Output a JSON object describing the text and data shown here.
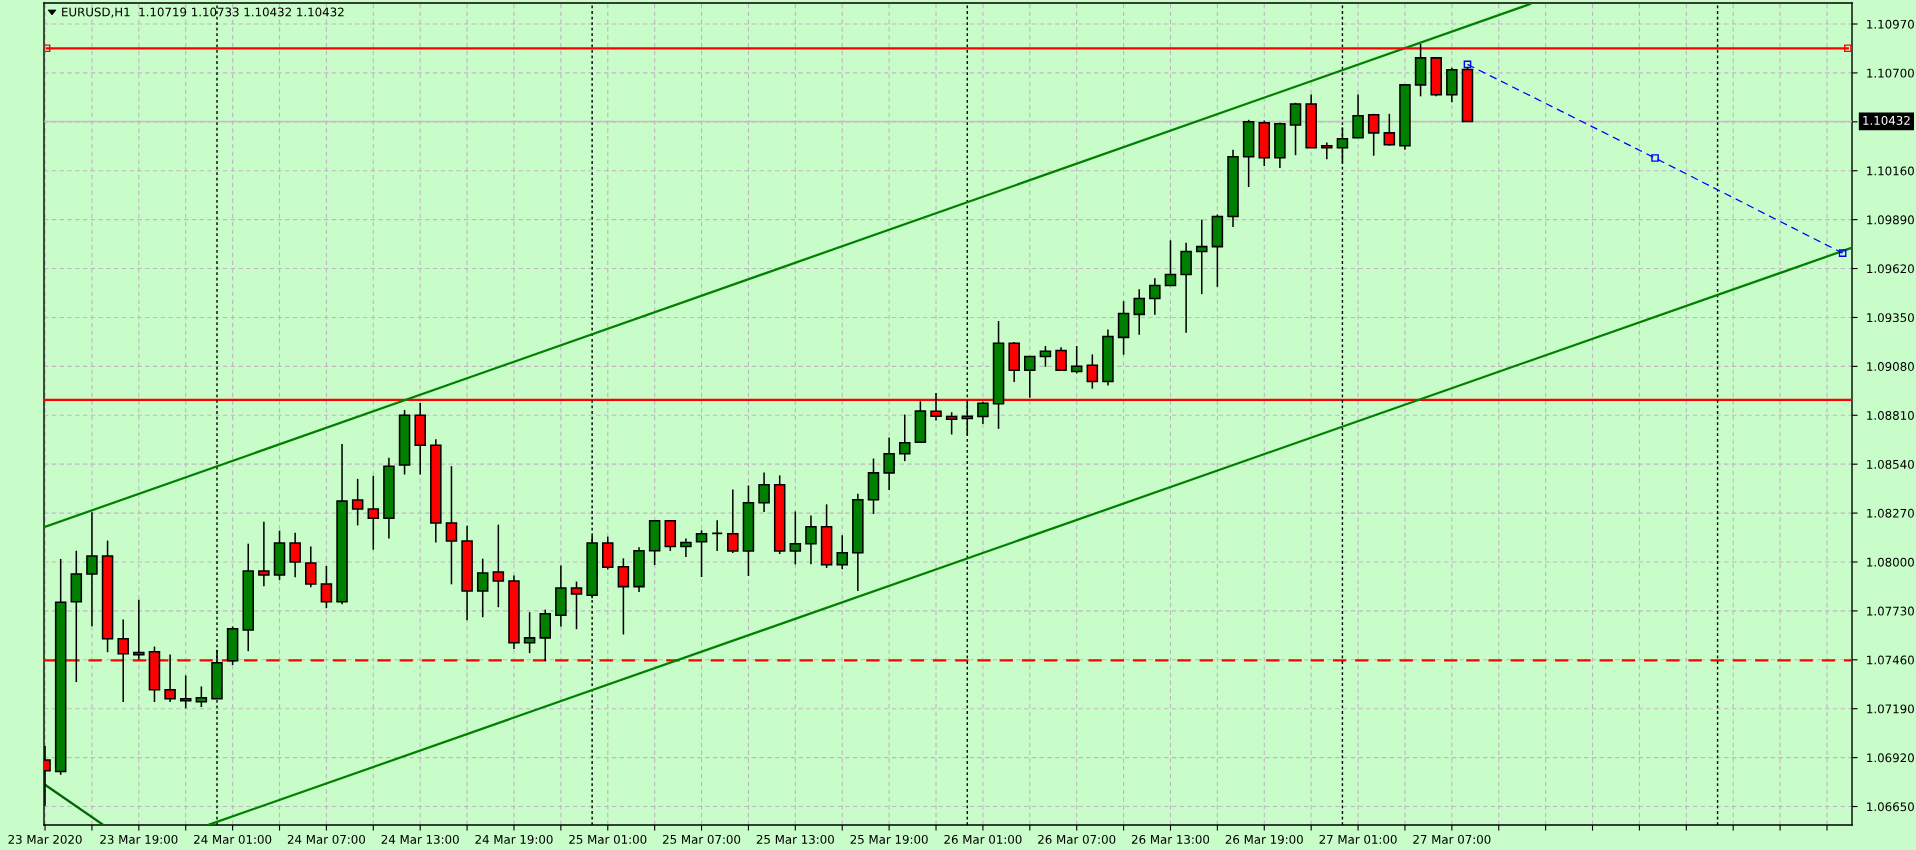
{
  "chart_data": {
    "type": "candlestick",
    "title": "EURUSD,H1  1.10719 1.10733 1.10432 1.10432",
    "x": [
      "2020-03-23T13:00",
      "2020-03-23T14:00",
      "2020-03-23T15:00",
      "2020-03-23T16:00",
      "2020-03-23T17:00",
      "2020-03-23T18:00",
      "2020-03-23T19:00",
      "2020-03-23T20:00",
      "2020-03-23T21:00",
      "2020-03-23T22:00",
      "2020-03-23T23:00",
      "2020-03-24T00:00",
      "2020-03-24T01:00",
      "2020-03-24T02:00",
      "2020-03-24T03:00",
      "2020-03-24T04:00",
      "2020-03-24T05:00",
      "2020-03-24T06:00",
      "2020-03-24T07:00",
      "2020-03-24T08:00",
      "2020-03-24T09:00",
      "2020-03-24T10:00",
      "2020-03-24T11:00",
      "2020-03-24T12:00",
      "2020-03-24T13:00",
      "2020-03-24T14:00",
      "2020-03-24T15:00",
      "2020-03-24T16:00",
      "2020-03-24T17:00",
      "2020-03-24T18:00",
      "2020-03-24T19:00",
      "2020-03-24T20:00",
      "2020-03-24T21:00",
      "2020-03-24T22:00",
      "2020-03-24T23:00",
      "2020-03-25T00:00",
      "2020-03-25T01:00",
      "2020-03-25T02:00",
      "2020-03-25T03:00",
      "2020-03-25T04:00",
      "2020-03-25T05:00",
      "2020-03-25T06:00",
      "2020-03-25T07:00",
      "2020-03-25T08:00",
      "2020-03-25T09:00",
      "2020-03-25T10:00",
      "2020-03-25T11:00",
      "2020-03-25T12:00",
      "2020-03-25T13:00",
      "2020-03-25T14:00",
      "2020-03-25T15:00",
      "2020-03-25T16:00",
      "2020-03-25T17:00",
      "2020-03-25T18:00",
      "2020-03-25T19:00",
      "2020-03-25T20:00",
      "2020-03-25T21:00",
      "2020-03-25T22:00",
      "2020-03-25T23:00",
      "2020-03-26T00:00",
      "2020-03-26T01:00",
      "2020-03-26T02:00",
      "2020-03-26T03:00",
      "2020-03-26T04:00",
      "2020-03-26T05:00",
      "2020-03-26T06:00",
      "2020-03-26T07:00",
      "2020-03-26T08:00",
      "2020-03-26T09:00",
      "2020-03-26T10:00",
      "2020-03-26T11:00",
      "2020-03-26T12:00",
      "2020-03-26T13:00",
      "2020-03-26T14:00",
      "2020-03-26T15:00",
      "2020-03-26T16:00",
      "2020-03-26T17:00",
      "2020-03-26T18:00",
      "2020-03-26T19:00",
      "2020-03-26T20:00",
      "2020-03-26T21:00",
      "2020-03-26T22:00",
      "2020-03-26T23:00",
      "2020-03-27T00:00",
      "2020-03-27T01:00",
      "2020-03-27T02:00",
      "2020-03-27T03:00",
      "2020-03-27T04:00",
      "2020-03-27T05:00",
      "2020-03-27T06:00",
      "2020-03-27T07:00",
      "2020-03-27T08:00"
    ],
    "ohlc": [
      [
        1.06907,
        1.06984,
        1.06654,
        1.06847
      ],
      [
        1.06843,
        1.08017,
        1.06825,
        1.07778
      ],
      [
        1.0778,
        1.08062,
        1.07337,
        1.07934
      ],
      [
        1.07934,
        1.08274,
        1.07645,
        1.08033
      ],
      [
        1.08033,
        1.08118,
        1.07502,
        1.07576
      ],
      [
        1.07576,
        1.07682,
        1.07227,
        1.07493
      ],
      [
        1.07488,
        1.07792,
        1.07462,
        1.075
      ],
      [
        1.07504,
        1.07533,
        1.07227,
        1.07295
      ],
      [
        1.07295,
        1.07489,
        1.07227,
        1.07245
      ],
      [
        1.07245,
        1.07374,
        1.07192,
        1.07234
      ],
      [
        1.07229,
        1.07313,
        1.07199,
        1.07251
      ],
      [
        1.07245,
        1.07515,
        1.07243,
        1.07444
      ],
      [
        1.07455,
        1.07644,
        1.07431,
        1.07631
      ],
      [
        1.07625,
        1.08101,
        1.07508,
        1.0795
      ],
      [
        1.0795,
        1.08222,
        1.07866,
        1.07928
      ],
      [
        1.07928,
        1.08173,
        1.07901,
        1.08105
      ],
      [
        1.08105,
        1.08162,
        1.07916,
        1.08
      ],
      [
        1.07995,
        1.08085,
        1.0786,
        1.07879
      ],
      [
        1.07879,
        1.07978,
        1.07745,
        1.0778
      ],
      [
        1.0778,
        1.08652,
        1.07767,
        1.08336
      ],
      [
        1.08342,
        1.08459,
        1.08202,
        1.08292
      ],
      [
        1.08292,
        1.08476,
        1.08068,
        1.08242
      ],
      [
        1.08242,
        1.08575,
        1.0813,
        1.08529
      ],
      [
        1.08535,
        1.08839,
        1.08483,
        1.0881
      ],
      [
        1.0881,
        1.08878,
        1.08483,
        1.08645
      ],
      [
        1.08645,
        1.08678,
        1.08108,
        1.08215
      ],
      [
        1.08215,
        1.08529,
        1.07877,
        1.08116
      ],
      [
        1.08116,
        1.082,
        1.07679,
        1.0784
      ],
      [
        1.0784,
        1.08018,
        1.07695,
        1.07939
      ],
      [
        1.07945,
        1.08206,
        1.0775,
        1.07895
      ],
      [
        1.07895,
        1.07925,
        1.07519,
        1.07554
      ],
      [
        1.07554,
        1.07723,
        1.07497,
        1.07581
      ],
      [
        1.07581,
        1.07737,
        1.07453,
        1.07714
      ],
      [
        1.07706,
        1.0798,
        1.07644,
        1.07857
      ],
      [
        1.07857,
        1.07892,
        1.07629,
        1.07824
      ],
      [
        1.07816,
        1.08145,
        1.078,
        1.08105
      ],
      [
        1.08105,
        1.0814,
        1.07958,
        1.07971
      ],
      [
        1.07974,
        1.0802,
        1.076,
        1.07864
      ],
      [
        1.07864,
        1.08081,
        1.07835,
        1.08062
      ],
      [
        1.08062,
        1.0823,
        1.07983,
        1.08228
      ],
      [
        1.08228,
        1.0823,
        1.08061,
        1.08085
      ],
      [
        1.08085,
        1.0813,
        1.08028,
        1.08107
      ],
      [
        1.08112,
        1.08175,
        1.07917,
        1.08156
      ],
      [
        1.08158,
        1.0823,
        1.08061,
        1.08158
      ],
      [
        1.08156,
        1.084,
        1.0805,
        1.08061
      ],
      [
        1.08061,
        1.08422,
        1.07923,
        1.08327
      ],
      [
        1.08327,
        1.08494,
        1.08276,
        1.08426
      ],
      [
        1.08426,
        1.08478,
        1.08044,
        1.08061
      ],
      [
        1.08061,
        1.08279,
        1.07987,
        1.08101
      ],
      [
        1.08101,
        1.08257,
        1.07987,
        1.08195
      ],
      [
        1.08195,
        1.08318,
        1.07967,
        1.07985
      ],
      [
        1.07985,
        1.08147,
        1.0796,
        1.08051
      ],
      [
        1.08051,
        1.08377,
        1.0784,
        1.08343
      ],
      [
        1.08343,
        1.08571,
        1.08265,
        1.08492
      ],
      [
        1.08492,
        1.08687,
        1.08397,
        1.08597
      ],
      [
        1.08597,
        1.08814,
        1.08557,
        1.08658
      ],
      [
        1.08661,
        1.08887,
        1.08658,
        1.08834
      ],
      [
        1.08832,
        1.08933,
        1.08781,
        1.08805
      ],
      [
        1.08803,
        1.08827,
        1.08704,
        1.08788
      ],
      [
        1.08792,
        1.08885,
        1.087,
        1.08805
      ],
      [
        1.08803,
        1.08884,
        1.08762,
        1.08876
      ],
      [
        1.08874,
        1.0933,
        1.08735,
        1.09207
      ],
      [
        1.09207,
        1.09214,
        1.08994,
        1.09058
      ],
      [
        1.09058,
        1.09135,
        1.08907,
        1.09135
      ],
      [
        1.09135,
        1.09192,
        1.09078,
        1.09163
      ],
      [
        1.09168,
        1.09185,
        1.09058,
        1.09058
      ],
      [
        1.09052,
        1.09192,
        1.09041,
        1.0908
      ],
      [
        1.09086,
        1.09146,
        1.08957,
        1.08997
      ],
      [
        1.08997,
        1.09284,
        1.08974,
        1.09245
      ],
      [
        1.0924,
        1.0944,
        1.09144,
        1.09372
      ],
      [
        1.09367,
        1.09506,
        1.09255,
        1.09455
      ],
      [
        1.09455,
        1.09567,
        1.09365,
        1.09526
      ],
      [
        1.09526,
        1.09776,
        1.09526,
        1.09587
      ],
      [
        1.09587,
        1.09763,
        1.09266,
        1.09714
      ],
      [
        1.09714,
        1.0989,
        1.09479,
        1.09741
      ],
      [
        1.09741,
        1.09918,
        1.09519,
        1.09907
      ],
      [
        1.09907,
        1.10276,
        1.0985,
        1.10237
      ],
      [
        1.10237,
        1.10441,
        1.1007,
        1.1043
      ],
      [
        1.10425,
        1.10437,
        1.10186,
        1.10232
      ],
      [
        1.10232,
        1.10426,
        1.10175,
        1.10419
      ],
      [
        1.10413,
        1.10535,
        1.10246,
        1.10529
      ],
      [
        1.10529,
        1.10581,
        1.10287,
        1.10287
      ],
      [
        1.10298,
        1.10316,
        1.10224,
        1.10287
      ],
      [
        1.10287,
        1.10399,
        1.10202,
        1.10336
      ],
      [
        1.10342,
        1.10581,
        1.10342,
        1.10463
      ],
      [
        1.10469,
        1.10474,
        1.10243,
        1.10369
      ],
      [
        1.10369,
        1.10474,
        1.10298,
        1.10303
      ],
      [
        1.10298,
        1.10639,
        1.10276,
        1.10634
      ],
      [
        1.10634,
        1.1086,
        1.10571,
        1.10783
      ],
      [
        1.10783,
        1.10783,
        1.10571,
        1.10579
      ],
      [
        1.10579,
        1.10728,
        1.10538,
        1.10717
      ],
      [
        1.10719,
        1.10733,
        1.10432,
        1.10432
      ]
    ],
    "series": [
      {
        "type": "line",
        "x": [
          "2020-03-23T13:00",
          "2020-03-27T12:00"
        ],
        "values": [
          1.08194,
          1.1108
        ],
        "color": "#008000",
        "line_style": "solid"
      },
      {
        "type": "line",
        "x": [
          "2020-03-23T23:30",
          "2020-03-28T08:30"
        ],
        "values": [
          1.0655,
          1.09732
        ],
        "color": "#008000",
        "line_style": "solid"
      },
      {
        "type": "line",
        "x": [
          "2020-03-23T13:00",
          "2020-03-23T16:40"
        ],
        "values": [
          1.0677,
          1.06552
        ],
        "color": "#006400",
        "line_style": "solid"
      },
      {
        "type": "line",
        "x": [
          "2020-03-27T08:00",
          "2020-03-27T20:00",
          "2020-03-28T08:00"
        ],
        "values": [
          1.10747,
          1.1023,
          1.09705
        ],
        "color": "#0000ff",
        "line_style": "dashed",
        "marker": "square"
      },
      {
        "type": "line",
        "x": [
          "2020-03-23T13:06",
          "2020-03-28T08:20"
        ],
        "values": [
          1.10836,
          1.10836
        ],
        "color": "#ff0000",
        "line_style": "solid",
        "marker": "square"
      }
    ],
    "ref_lines": [
      {
        "axis": "y",
        "value": 1.08895,
        "color": "#ff0000",
        "line_style": "solid"
      },
      {
        "axis": "y",
        "value": 1.07457,
        "color": "#ff0000",
        "line_style": "dashed"
      },
      {
        "axis": "y",
        "value": 1.10432,
        "label": "1.10432",
        "color": "#c0c0c0",
        "line_style": "solid"
      },
      {
        "axis": "x",
        "value": "2020-03-24T00:00",
        "color": "#000000",
        "line_style": "dotted"
      },
      {
        "axis": "x",
        "value": "2020-03-25T00:00",
        "color": "#000000",
        "line_style": "dotted"
      },
      {
        "axis": "x",
        "value": "2020-03-26T00:00",
        "color": "#000000",
        "line_style": "dotted"
      },
      {
        "axis": "x",
        "value": "2020-03-27T00:00",
        "color": "#000000",
        "line_style": "dotted"
      },
      {
        "axis": "x",
        "value": "2020-03-28T00:00",
        "color": "#000000",
        "line_style": "dotted"
      }
    ],
    "xlim": [
      "2020-03-23T12:56",
      "2020-03-28T08:36"
    ],
    "xticks": [
      {
        "value": "2020-03-23T13:00",
        "label": "23 Mar 2020"
      },
      {
        "value": "2020-03-23T16:00",
        "label": null
      },
      {
        "value": "2020-03-23T19:00",
        "label": "23 Mar 19:00"
      },
      {
        "value": "2020-03-23T22:00",
        "label": null
      },
      {
        "value": "2020-03-24T01:00",
        "label": "24 Mar 01:00"
      },
      {
        "value": "2020-03-24T04:00",
        "label": null
      },
      {
        "value": "2020-03-24T07:00",
        "label": "24 Mar 07:00"
      },
      {
        "value": "2020-03-24T10:00",
        "label": null
      },
      {
        "value": "2020-03-24T13:00",
        "label": "24 Mar 13:00"
      },
      {
        "value": "2020-03-24T16:00",
        "label": null
      },
      {
        "value": "2020-03-24T19:00",
        "label": "24 Mar 19:00"
      },
      {
        "value": "2020-03-24T22:00",
        "label": null
      },
      {
        "value": "2020-03-25T01:00",
        "label": "25 Mar 01:00"
      },
      {
        "value": "2020-03-25T04:00",
        "label": null
      },
      {
        "value": "2020-03-25T07:00",
        "label": "25 Mar 07:00"
      },
      {
        "value": "2020-03-25T10:00",
        "label": null
      },
      {
        "value": "2020-03-25T13:00",
        "label": "25 Mar 13:00"
      },
      {
        "value": "2020-03-25T16:00",
        "label": null
      },
      {
        "value": "2020-03-25T19:00",
        "label": "25 Mar 19:00"
      },
      {
        "value": "2020-03-25T22:00",
        "label": null
      },
      {
        "value": "2020-03-26T01:00",
        "label": "26 Mar 01:00"
      },
      {
        "value": "2020-03-26T04:00",
        "label": null
      },
      {
        "value": "2020-03-26T07:00",
        "label": "26 Mar 07:00"
      },
      {
        "value": "2020-03-26T10:00",
        "label": null
      },
      {
        "value": "2020-03-26T13:00",
        "label": "26 Mar 13:00"
      },
      {
        "value": "2020-03-26T16:00",
        "label": null
      },
      {
        "value": "2020-03-26T19:00",
        "label": "26 Mar 19:00"
      },
      {
        "value": "2020-03-26T22:00",
        "label": null
      },
      {
        "value": "2020-03-27T01:00",
        "label": "27 Mar 01:00"
      },
      {
        "value": "2020-03-27T04:00",
        "label": null
      },
      {
        "value": "2020-03-27T07:00",
        "label": "27 Mar 07:00"
      },
      {
        "value": "2020-03-27T10:00",
        "label": null
      },
      {
        "value": "2020-03-27T13:00",
        "label": null
      },
      {
        "value": "2020-03-27T16:00",
        "label": null
      },
      {
        "value": "2020-03-27T19:00",
        "label": null
      },
      {
        "value": "2020-03-27T22:00",
        "label": null
      },
      {
        "value": "2020-03-28T01:00",
        "label": null
      },
      {
        "value": "2020-03-28T04:00",
        "label": null
      },
      {
        "value": "2020-03-28T07:00",
        "label": null
      }
    ],
    "ylim": [
      1.06548,
      1.11086
    ],
    "yticks": [
      {
        "value": 1.0665,
        "label": "1.06650"
      },
      {
        "value": 1.0692,
        "label": "1.06920"
      },
      {
        "value": 1.0719,
        "label": "1.07190"
      },
      {
        "value": 1.0746,
        "label": "1.07460"
      },
      {
        "value": 1.0773,
        "label": "1.07730"
      },
      {
        "value": 1.08,
        "label": "1.08000"
      },
      {
        "value": 1.0827,
        "label": "1.08270"
      },
      {
        "value": 1.0854,
        "label": "1.08540"
      },
      {
        "value": 1.0881,
        "label": "1.08810"
      },
      {
        "value": 1.0908,
        "label": "1.09080"
      },
      {
        "value": 1.0935,
        "label": "1.09350"
      },
      {
        "value": 1.0962,
        "label": "1.09620"
      },
      {
        "value": 1.0989,
        "label": "1.09890"
      },
      {
        "value": 1.1016,
        "label": "1.10160"
      },
      {
        "value": 1.1043,
        "label": null
      },
      {
        "value": 1.107,
        "label": "1.10700"
      },
      {
        "value": 1.1097,
        "label": "1.10970"
      }
    ],
    "grid": true
  }
}
